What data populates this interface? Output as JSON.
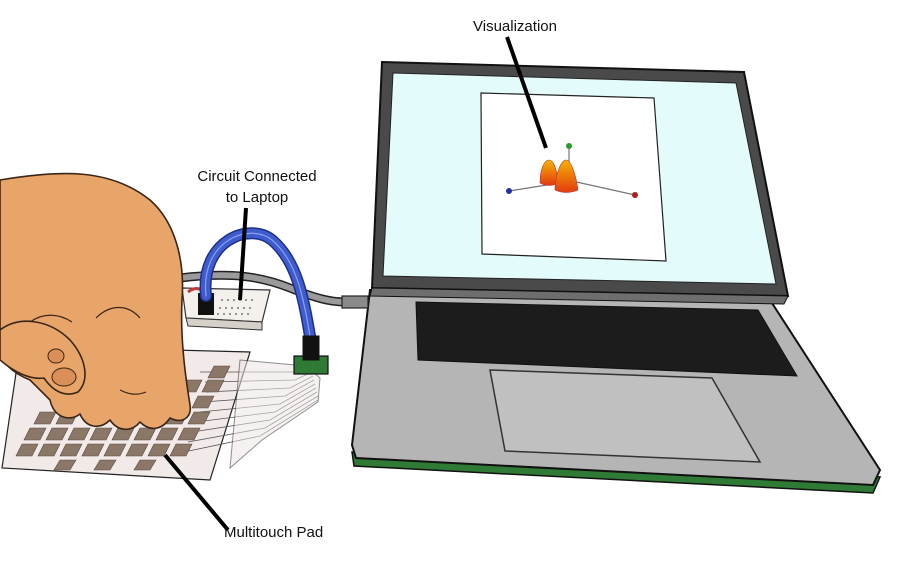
{
  "labels": {
    "visualization": "Visualization",
    "circuit_line1": "Circuit Connected",
    "circuit_line2": "to Laptop",
    "multitouch_pad": "Multitouch Pad"
  },
  "colors": {
    "screen": "#e4fbfb",
    "bezel": "#4a4a4a",
    "body": "#b5b5b5",
    "keyboard": "#1c1c1c",
    "base_edge": "#2f7a35",
    "skin": "#e8a56a",
    "cable_blue": "#3f5ccf",
    "pad_cell": "#8a7767"
  }
}
